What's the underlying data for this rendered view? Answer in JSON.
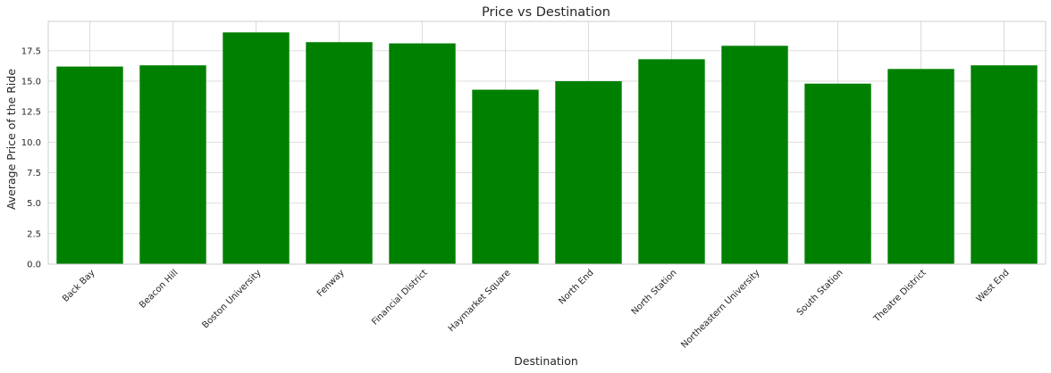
{
  "chart_data": {
    "type": "bar",
    "title": "Price vs Destination",
    "xlabel": "Destination",
    "ylabel": "Average Price of the Ride",
    "categories": [
      "Back Bay",
      "Beacon Hill",
      "Boston University",
      "Fenway",
      "Financial District",
      "Haymarket Square",
      "North End",
      "North Station",
      "Northeastern University",
      "South Station",
      "Theatre District",
      "West End"
    ],
    "values": [
      16.2,
      16.3,
      19.0,
      18.2,
      18.1,
      14.3,
      15.0,
      16.8,
      17.9,
      14.8,
      16.0,
      16.3
    ],
    "ylim": [
      0,
      19.9
    ],
    "yticks": [
      "0.0",
      "2.5",
      "5.0",
      "7.5",
      "10.0",
      "12.5",
      "15.0",
      "17.5"
    ],
    "bar_color": "#008000",
    "grid": true
  }
}
